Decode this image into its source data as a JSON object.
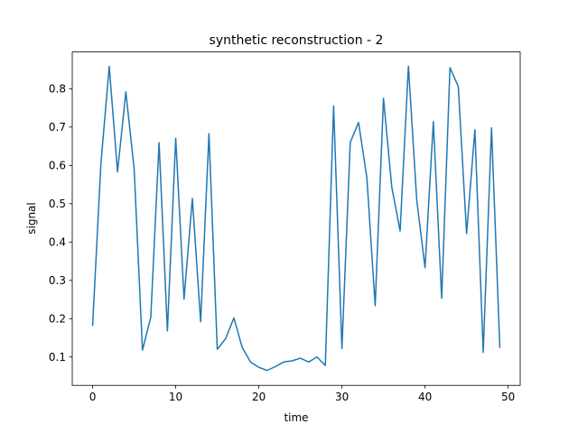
{
  "chart_data": {
    "type": "line",
    "title": "synthetic reconstruction - 2",
    "xlabel": "time",
    "ylabel": "signal",
    "xlim": [
      -2.45,
      51.45
    ],
    "ylim": [
      0.026,
      0.896
    ],
    "xticks": [
      0,
      10,
      20,
      30,
      40,
      50
    ],
    "yticks": [
      0.1,
      0.2,
      0.3,
      0.4,
      0.5,
      0.6,
      0.7,
      0.8
    ],
    "grid": false,
    "series": [
      {
        "color": "#1f77b4",
        "x": [
          0,
          1,
          2,
          3,
          4,
          5,
          6,
          7,
          8,
          9,
          10,
          11,
          12,
          13,
          14,
          15,
          16,
          17,
          18,
          19,
          20,
          21,
          22,
          23,
          24,
          25,
          26,
          27,
          28,
          29,
          30,
          31,
          32,
          33,
          34,
          35,
          36,
          37,
          38,
          39,
          40,
          41,
          42,
          43,
          44,
          45,
          46,
          47,
          48,
          49
        ],
        "y": [
          0.183,
          0.605,
          0.858,
          0.583,
          0.792,
          0.59,
          0.118,
          0.204,
          0.659,
          0.168,
          0.671,
          0.251,
          0.514,
          0.192,
          0.683,
          0.12,
          0.148,
          0.202,
          0.125,
          0.087,
          0.073,
          0.065,
          0.075,
          0.087,
          0.09,
          0.097,
          0.087,
          0.1,
          0.078,
          0.755,
          0.122,
          0.66,
          0.712,
          0.568,
          0.234,
          0.775,
          0.543,
          0.429,
          0.859,
          0.51,
          0.333,
          0.714,
          0.253,
          0.855,
          0.806,
          0.422,
          0.693,
          0.112,
          0.698,
          0.125
        ]
      }
    ]
  }
}
